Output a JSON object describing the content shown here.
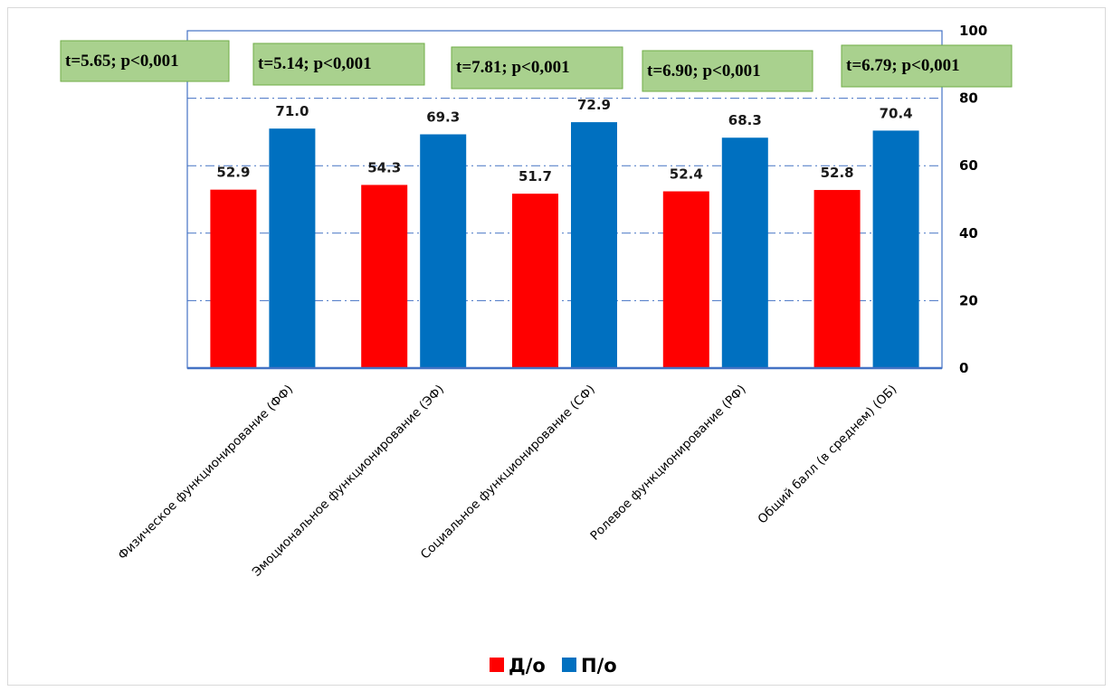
{
  "chart_data": {
    "type": "bar",
    "categories": [
      "Физическое функционирование (ФФ)",
      "Эмоциональное функционирование (ЭФ)",
      "Социальное функционирование (СФ)",
      "Ролевое функционирование (РФ)",
      "Общий балл (в среднем) (ОБ)"
    ],
    "series": [
      {
        "name": "Д/о",
        "color": "#ff0000",
        "values": [
          52.9,
          54.3,
          51.7,
          52.4,
          52.8
        ],
        "labels": [
          "52.9",
          "54.3",
          "51.7",
          "52.4",
          "52.8"
        ]
      },
      {
        "name": "П/о",
        "color": "#0070c0",
        "values": [
          71.0,
          69.3,
          72.9,
          68.3,
          70.4
        ],
        "labels": [
          "71.0",
          "69.3",
          "72.9",
          "68.3",
          "70.4"
        ]
      }
    ],
    "annotations": [
      "t=5.65; p<0,001",
      "t=5.14; p<0,001",
      "t=7.81; p<0,001",
      "t=6.90; p<0,001",
      "t=6.79; p<0,001"
    ],
    "ylim": [
      0,
      100
    ],
    "yticks": [
      "0",
      "20",
      "40",
      "60",
      "80",
      "100"
    ],
    "y_axis_side": "right",
    "grid": true,
    "legend_position": "bottom",
    "title": "",
    "xlabel": "",
    "ylabel": ""
  },
  "colors": {
    "plot_border": "#4472c4",
    "grid": "#4472c4",
    "annotation_fill": "#a9d18e",
    "annotation_border": "#70ad47"
  }
}
